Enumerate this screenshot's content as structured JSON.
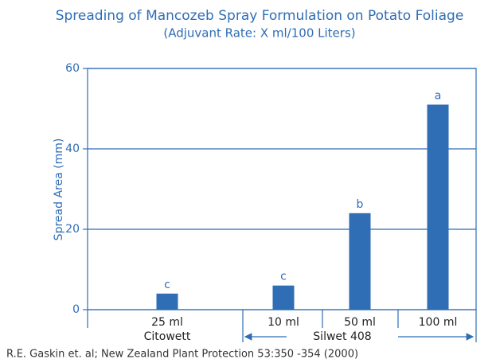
{
  "chart_data": {
    "type": "bar",
    "title": "Spreading of Mancozeb Spray Formulation on Potato Foliage",
    "subtitle": "(Adjuvant Rate: X ml/100 Liters)",
    "y_label": "Spread Area (mm)",
    "categories": [
      "25 ml",
      "10 ml",
      "50 ml",
      "100 ml"
    ],
    "values": [
      4,
      6,
      24,
      51
    ],
    "annotations": [
      "c",
      "c",
      "b",
      "a"
    ],
    "groups": [
      "Citowett",
      "Silwet 408"
    ],
    "color": "#2f6db5",
    "ylim": [
      0,
      60
    ],
    "yticks": [
      0,
      20,
      40,
      60
    ],
    "grid": true,
    "source": "R.E. Gaskin et. al; New Zealand Plant Protection 53:350 -354 (2000)"
  }
}
